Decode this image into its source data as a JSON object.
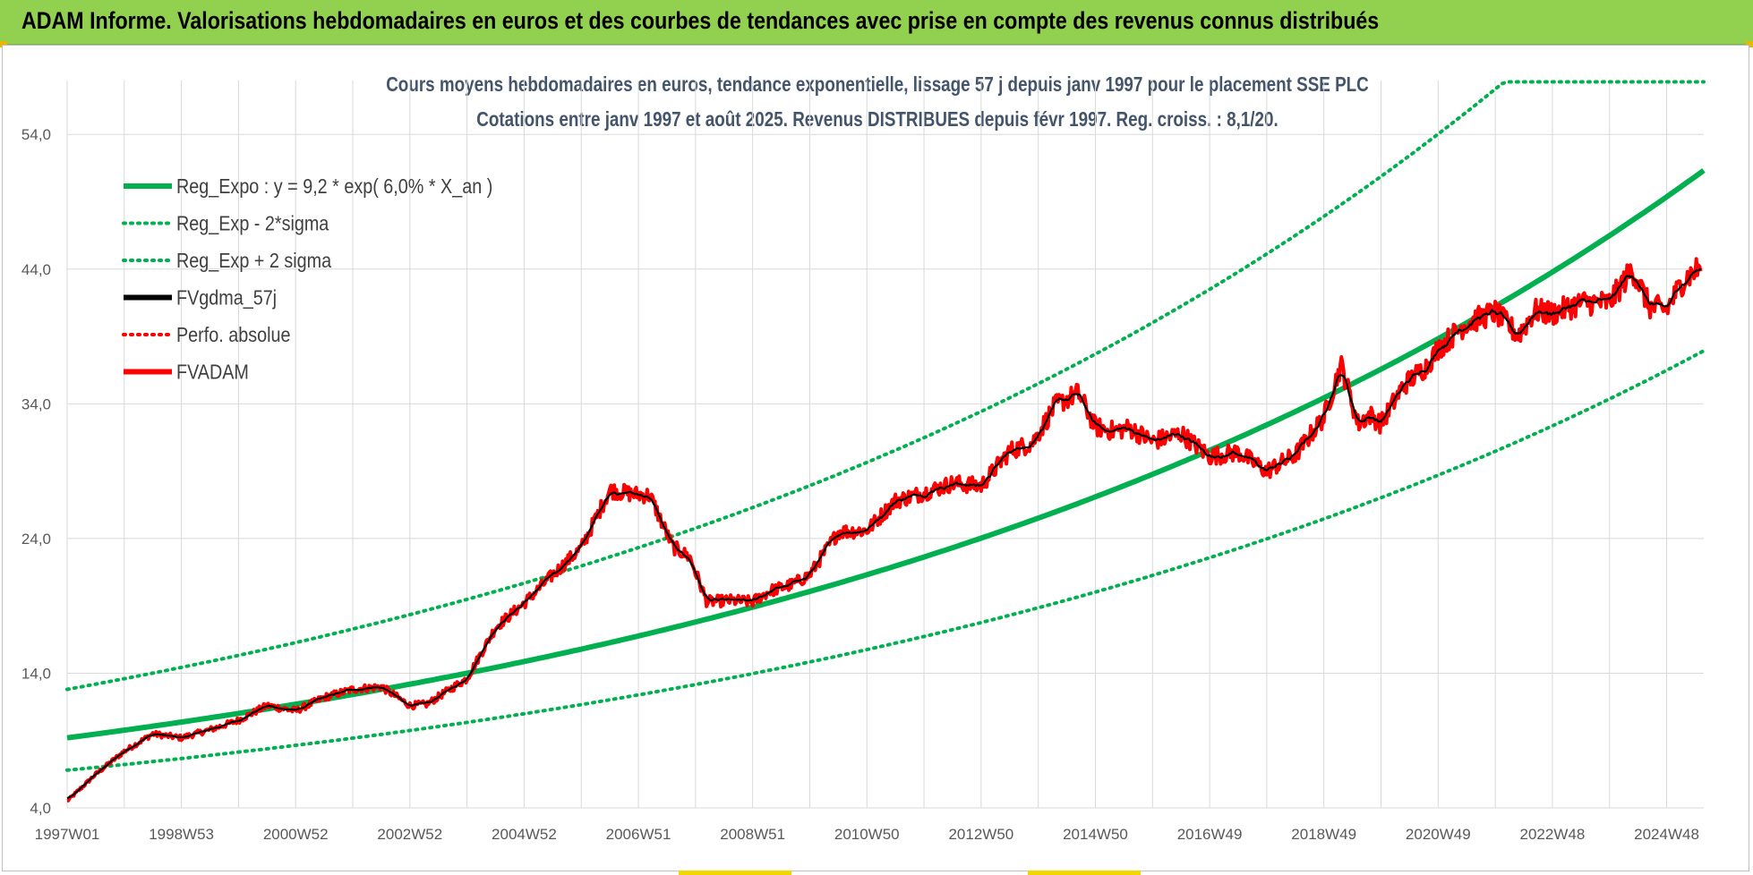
{
  "header": {
    "title": "ADAM Informe. Valorisations hebdomadaires en euros et des courbes de tendances avec prise en compte des revenus connus distribués"
  },
  "chart_data": {
    "type": "line",
    "title_line1": "Cours moyens hebdomadaires en euros, tendance exponentielle, lissage 57 j depuis janv 1997 pour le placement SSE PLC",
    "title_line2": "Cotations entre janv 1997 et août 2025. Revenus DISTRIBUES depuis févr 1997. Reg. croiss. : 8,1/20.",
    "xlabel": "",
    "ylabel": "",
    "ylim": [
      4,
      58
    ],
    "yticks": [
      "4,0",
      "14,0",
      "24,0",
      "34,0",
      "44,0",
      "54,0"
    ],
    "ytick_values": [
      4,
      14,
      24,
      34,
      44,
      54
    ],
    "xlim": [
      1997.0,
      2025.65
    ],
    "xticks": [
      "1997W01",
      "1998W53",
      "2000W52",
      "2002W52",
      "2004W52",
      "2006W51",
      "2008W51",
      "2010W50",
      "2012W50",
      "2014W50",
      "2016W49",
      "2018W49",
      "2020W49",
      "2022W48",
      "2024W48"
    ],
    "xtick_values": [
      1997.0,
      1999.0,
      2001.0,
      2003.0,
      2005.0,
      2007.0,
      2009.0,
      2011.0,
      2013.0,
      2015.0,
      2017.0,
      2019.0,
      2021.0,
      2023.0,
      2025.0
    ],
    "grid": true,
    "legend_position": "top-left",
    "series": [
      {
        "name": "Reg_Expo : y = 9,2 * exp( 6,0% *  X_an )",
        "color": "#00b050",
        "style": "solid",
        "kind": "expo",
        "a": 9.2,
        "r": 0.06
      },
      {
        "name": "Reg_Exp - 2*sigma",
        "color": "#00b050",
        "style": "dotted",
        "kind": "expo",
        "a": 6.8,
        "r": 0.06
      },
      {
        "name": "Reg_Exp + 2 sigma",
        "color": "#00b050",
        "style": "dotted",
        "kind": "expo",
        "a": 12.8,
        "r": 0.06,
        "cap": 57.9
      },
      {
        "name": "FVgdma_57j",
        "color": "#000000",
        "style": "solid",
        "kind": "data"
      },
      {
        "name": "Perfo. absolue",
        "color": "#ff0000",
        "style": "dotted",
        "kind": "legend-only"
      },
      {
        "name": "FVADAM",
        "color": "#ff0000",
        "style": "solid",
        "kind": "data"
      }
    ],
    "fvadam_points": {
      "x": [
        1997.0,
        1997.5,
        1998.0,
        1998.5,
        1999.0,
        1999.5,
        2000.0,
        2000.5,
        2001.0,
        2001.5,
        2002.0,
        2002.5,
        2003.0,
        2003.3,
        2003.7,
        2004.0,
        2004.5,
        2005.0,
        2005.5,
        2006.0,
        2006.5,
        2006.9,
        2007.2,
        2007.6,
        2007.9,
        2008.2,
        2008.6,
        2009.0,
        2009.3,
        2009.7,
        2010.0,
        2010.5,
        2011.0,
        2011.5,
        2012.0,
        2012.5,
        2013.0,
        2013.5,
        2013.9,
        2014.3,
        2014.7,
        2015.0,
        2015.3,
        2015.6,
        2016.0,
        2016.5,
        2017.0,
        2017.5,
        2018.0,
        2018.5,
        2019.0,
        2019.3,
        2019.6,
        2019.8,
        2020.0,
        2020.4,
        2020.8,
        2021.0,
        2021.5,
        2022.0,
        2022.4,
        2022.7,
        2023.0,
        2023.5,
        2024.0,
        2024.4,
        2024.7,
        2025.0,
        2025.3,
        2025.6
      ],
      "y": [
        4.5,
        6.5,
        8.2,
        9.5,
        9.2,
        9.8,
        10.5,
        11.6,
        11.2,
        12.2,
        12.8,
        13.0,
        11.6,
        11.7,
        12.8,
        13.6,
        17.4,
        19.2,
        21.3,
        23.3,
        27.6,
        27.3,
        27.2,
        23.4,
        22.6,
        19.3,
        19.4,
        19.3,
        20.1,
        20.6,
        21.3,
        24.5,
        24.6,
        26.8,
        27.4,
        28.1,
        27.9,
        30.5,
        31.1,
        33.9,
        34.8,
        32.3,
        32.0,
        32.2,
        31.2,
        31.8,
        30.1,
        30.4,
        29.0,
        30.2,
        33.0,
        36.9,
        32.5,
        33.2,
        32.5,
        35.4,
        36.8,
        38.1,
        40.0,
        40.8,
        39.1,
        40.9,
        40.7,
        41.5,
        41.5,
        44.0,
        41.2,
        41.0,
        43.2,
        44.2
      ]
    }
  }
}
